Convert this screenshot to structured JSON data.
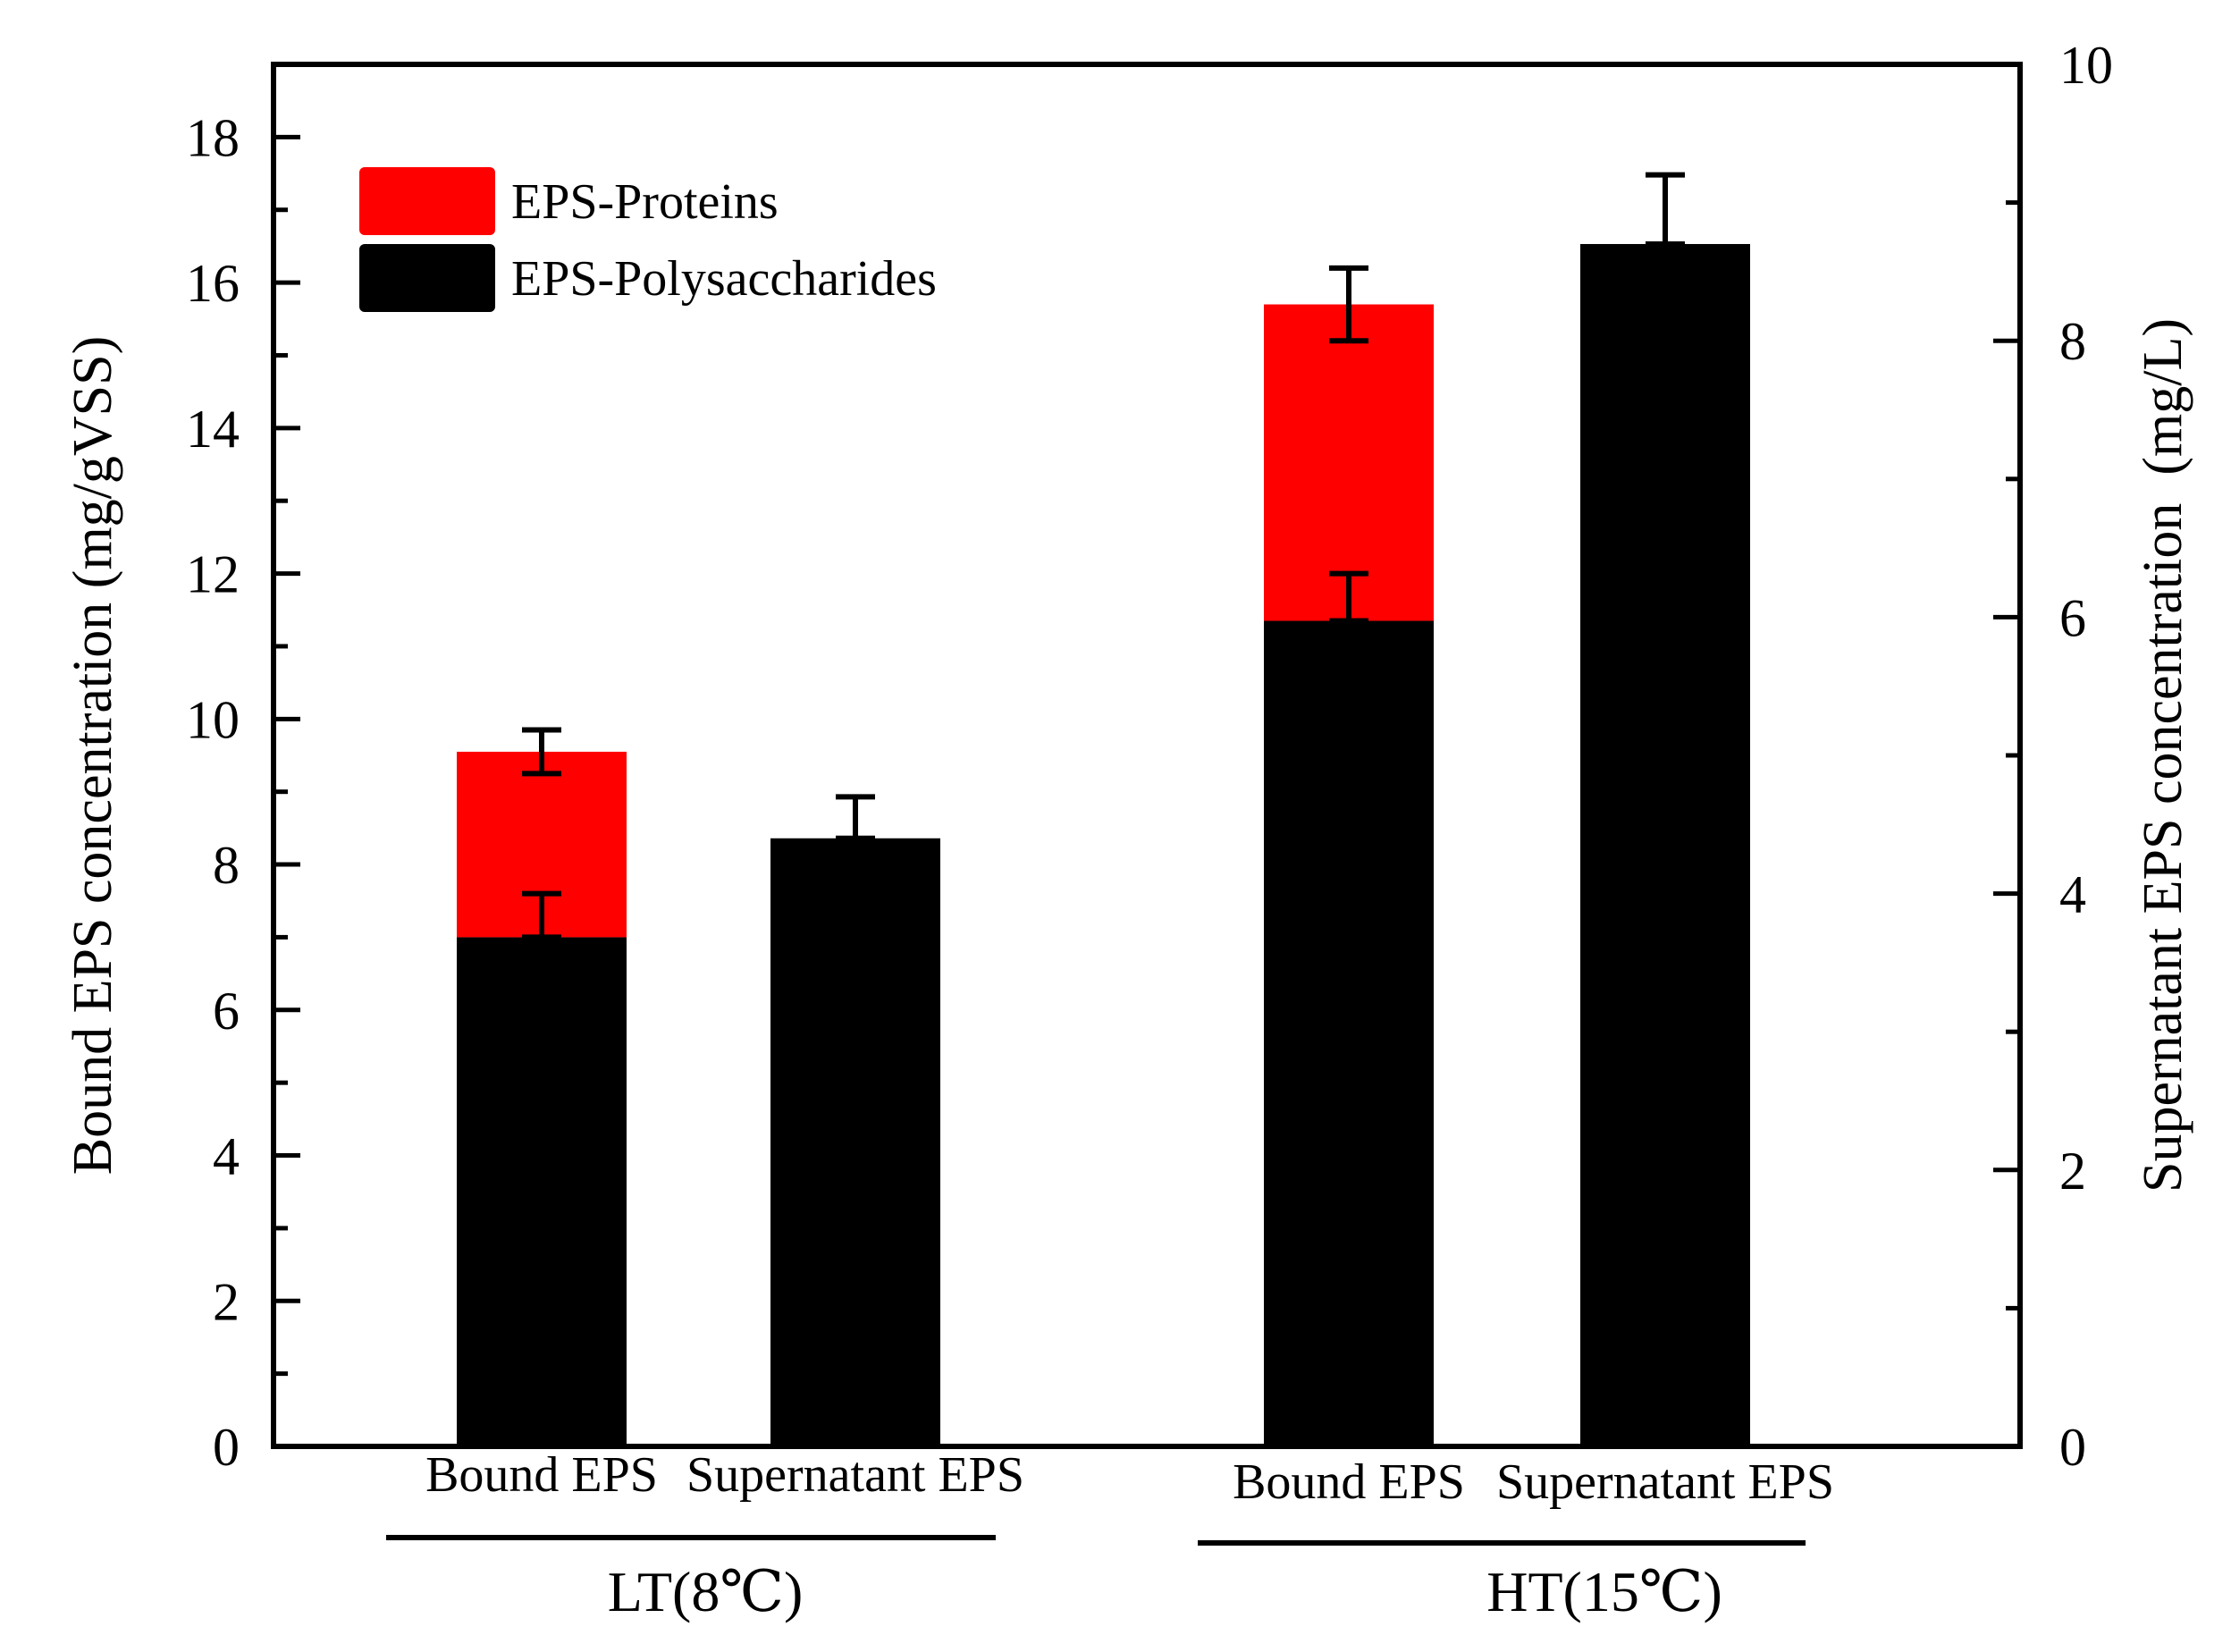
{
  "chart_data": {
    "type": "bar",
    "stacked": true,
    "dual_axis": true,
    "groups": [
      {
        "label": "LT(8℃)",
        "categories": [
          "Bound EPS",
          "Supernatant EPS"
        ]
      },
      {
        "label": "HT(15℃)",
        "categories": [
          "Bound EPS",
          "Supernatant EPS"
        ]
      }
    ],
    "bars": [
      {
        "group": 0,
        "category": "Bound EPS",
        "axis": "left",
        "polysaccharides": 7.0,
        "polysaccharides_err": 0.6,
        "proteins": 2.55,
        "total_err": 0.3
      },
      {
        "group": 0,
        "category": "Supernatant EPS",
        "axis": "right",
        "polysaccharides": 4.4,
        "polysaccharides_err": 0.3
      },
      {
        "group": 1,
        "category": "Bound EPS",
        "axis": "left",
        "polysaccharides": 11.35,
        "polysaccharides_err": 0.65,
        "proteins": 4.35,
        "total_err": 0.5
      },
      {
        "group": 1,
        "category": "Supernatant EPS",
        "axis": "right",
        "polysaccharides": 8.7,
        "polysaccharides_err": 0.5
      }
    ],
    "series": [
      {
        "name": "EPS-Proteins",
        "color": "#ff0000"
      },
      {
        "name": "EPS-Polysaccharides",
        "color": "#000000"
      }
    ],
    "ylabel": "Bound EPS concentration (mg/gVSS)",
    "ylim": [
      0,
      19
    ],
    "yticks": [
      0,
      2,
      4,
      6,
      8,
      10,
      12,
      14,
      16,
      18
    ],
    "y2label": "Supernatant EPS concentration  (mg/L)",
    "y2lim": [
      0,
      10
    ],
    "y2ticks": [
      0,
      2,
      4,
      6,
      8,
      10
    ],
    "legend_position": "top-left"
  }
}
